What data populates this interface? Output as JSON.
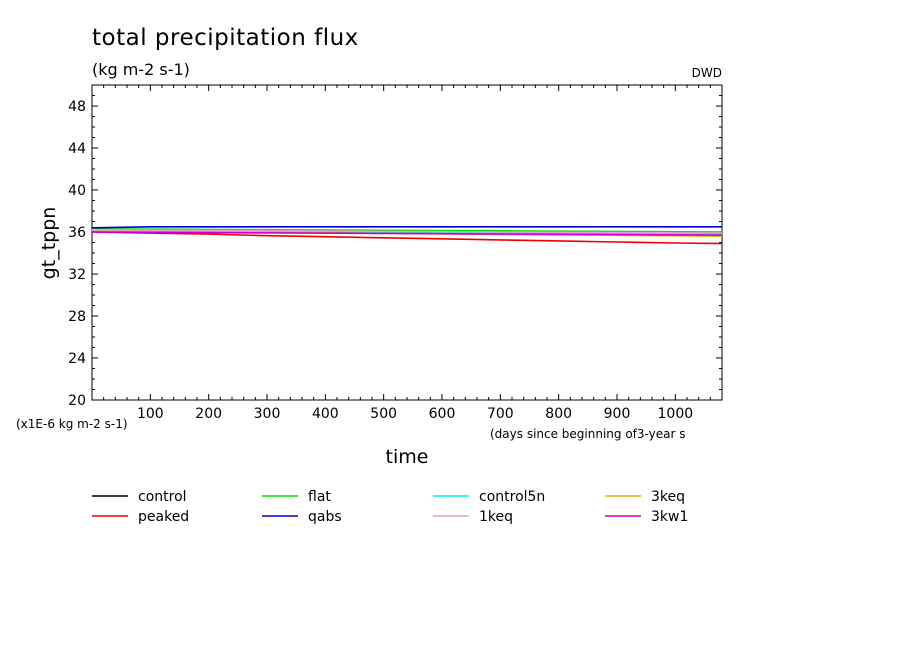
{
  "chart_data": {
    "type": "line",
    "title": "total precipitation flux",
    "units": "(kg m-2 s-1)",
    "source": "DWD",
    "xlabel": "time",
    "xlabel_note": "(days since beginning of3-year s",
    "ylabel": "gt_tppn",
    "y_scale_note": "(x1E-6 kg m-2 s-1)",
    "xlim": [
      0,
      1080
    ],
    "ylim": [
      20,
      50
    ],
    "x_ticks": [
      100,
      200,
      300,
      400,
      500,
      600,
      700,
      800,
      900,
      1000
    ],
    "y_ticks": [
      20,
      24,
      28,
      32,
      36,
      40,
      44,
      48
    ],
    "legend_position": "bottom",
    "series": [
      {
        "name": "control",
        "color": "#000000",
        "x": [
          0,
          1080
        ],
        "y": [
          36.1,
          35.9
        ]
      },
      {
        "name": "flat",
        "color": "#00dd00",
        "x": [
          0,
          1080
        ],
        "y": [
          36.3,
          36.0
        ]
      },
      {
        "name": "control5n",
        "color": "#00eeee",
        "x": [
          0,
          1080
        ],
        "y": [
          36.2,
          35.8
        ]
      },
      {
        "name": "3keq",
        "color": "#e8b000",
        "x": [
          0,
          1080
        ],
        "y": [
          36.1,
          35.6
        ]
      },
      {
        "name": "peaked",
        "color": "#ee0000",
        "x": [
          0,
          100,
          200,
          300,
          400,
          500,
          600,
          700,
          800,
          900,
          1000,
          1080
        ],
        "y": [
          36.0,
          35.9,
          35.8,
          35.65,
          35.55,
          35.45,
          35.35,
          35.25,
          35.15,
          35.05,
          34.95,
          34.9
        ]
      },
      {
        "name": "qabs",
        "color": "#0000cc",
        "x": [
          0,
          100,
          200,
          300,
          400,
          500,
          600,
          700,
          800,
          900,
          1000,
          1080
        ],
        "y": [
          36.4,
          36.5,
          36.5,
          36.5,
          36.5,
          36.5,
          36.5,
          36.5,
          36.5,
          36.5,
          36.5,
          36.5
        ]
      },
      {
        "name": "1keq",
        "color": "#e0a0d8",
        "x": [
          0,
          1080
        ],
        "y": [
          36.2,
          35.9
        ]
      },
      {
        "name": "3kw1",
        "color": "#cc00cc",
        "x": [
          0,
          1080
        ],
        "y": [
          36.0,
          35.7
        ]
      }
    ]
  }
}
